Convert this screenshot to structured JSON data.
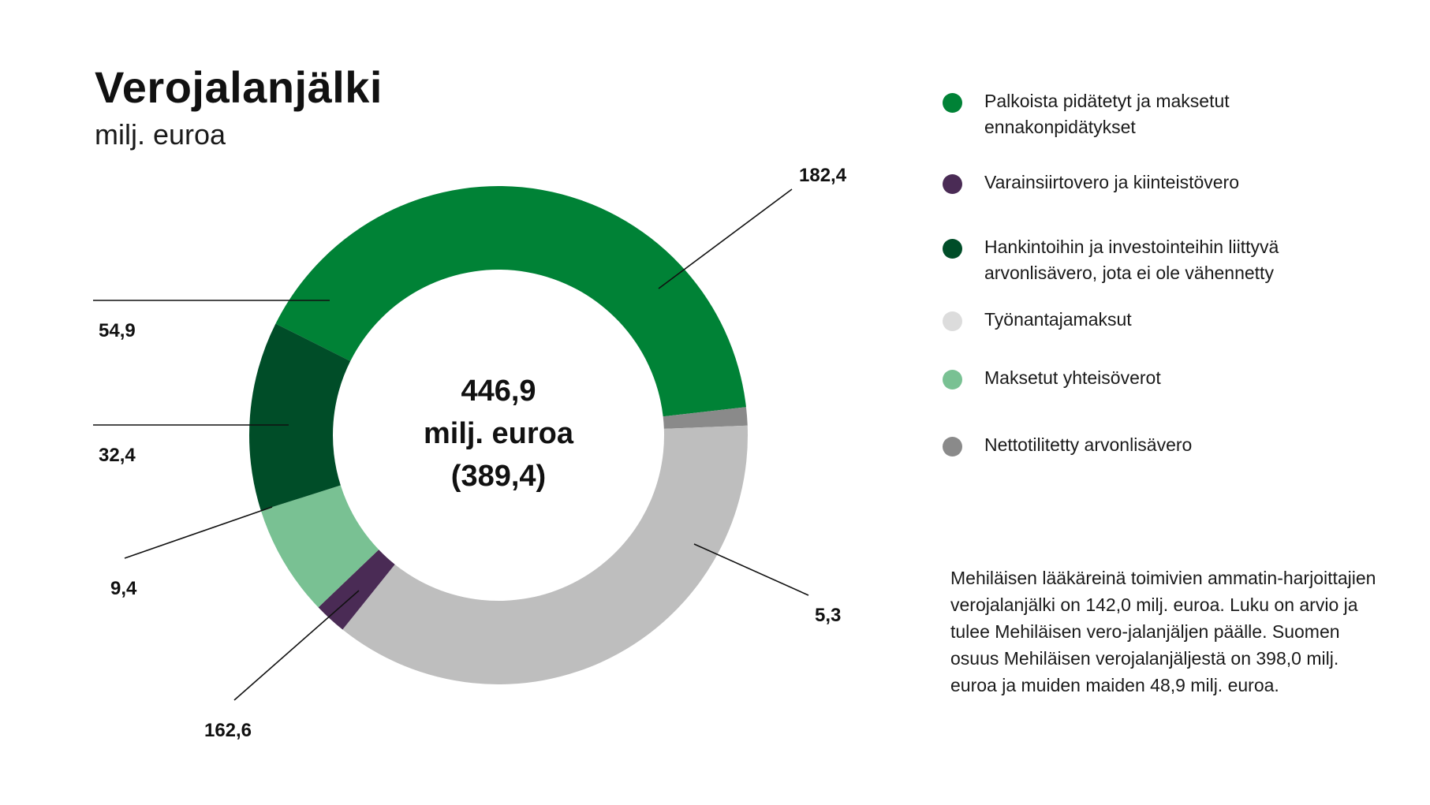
{
  "header": {
    "title": "Verojalanjälki",
    "subtitle": "milj. euroa"
  },
  "chart_data": {
    "type": "pie",
    "title": "Verojalanjälki",
    "subtitle": "milj. euroa",
    "center_label": [
      "446,9",
      "milj. euroa",
      "(389,4)"
    ],
    "total": 446.9,
    "legend_position": "right",
    "series": [
      {
        "name": "Palkoista pidätetyt ja maksetut ennakonpidätykset",
        "value": 182.4,
        "label": "182,4",
        "color": "#008236"
      },
      {
        "name": "Nettotilitetty arvonlisävero",
        "value": 5.3,
        "label": "5,3",
        "color": "#8a8a8a"
      },
      {
        "name": "Työnantajamaksut",
        "value": 162.6,
        "label": "162,6",
        "color": "#bebebe"
      },
      {
        "name": "Varainsiirtovero ja kiinteistövero",
        "value": 9.4,
        "label": "9,4",
        "color": "#4a2b55"
      },
      {
        "name": "Maksetut yhteisöverot",
        "value": 32.4,
        "label": "32,4",
        "color": "#79c193"
      },
      {
        "name": "Hankintoihin ja investointeihin liittyvä arvonlisävero, jota ei ole vähennetty",
        "value": 54.9,
        "label": "54,9",
        "color": "#004d28"
      }
    ]
  },
  "legend": {
    "items": [
      {
        "label": "Palkoista pidätetyt ja maksetut ennakonpidätykset",
        "color": "#008236"
      },
      {
        "label": "Varainsiirtovero ja kiinteistövero",
        "color": "#4a2b55"
      },
      {
        "label": "Hankintoihin ja investointeihin liittyvä arvonlisävero, jota ei ole vähennetty",
        "color": "#004d28"
      },
      {
        "label": "Työnantajamaksut",
        "color": "#dcdcdc"
      },
      {
        "label": "Maksetut yhteisöverot",
        "color": "#79c193"
      },
      {
        "label": "Nettotilitetty arvonlisävero",
        "color": "#8a8a8a"
      }
    ]
  },
  "note": {
    "text": "Mehiläisen lääkäreinä toimivien ammatin-harjoittajien verojalanjälki on 142,0 milj. euroa. Luku on arvio ja tulee Mehiläisen vero-jalanjäljen päälle. Suomen osuus Mehiläisen verojalanjäljestä on 398,0 milj. euroa ja muiden maiden 48,9 milj. euroa."
  }
}
